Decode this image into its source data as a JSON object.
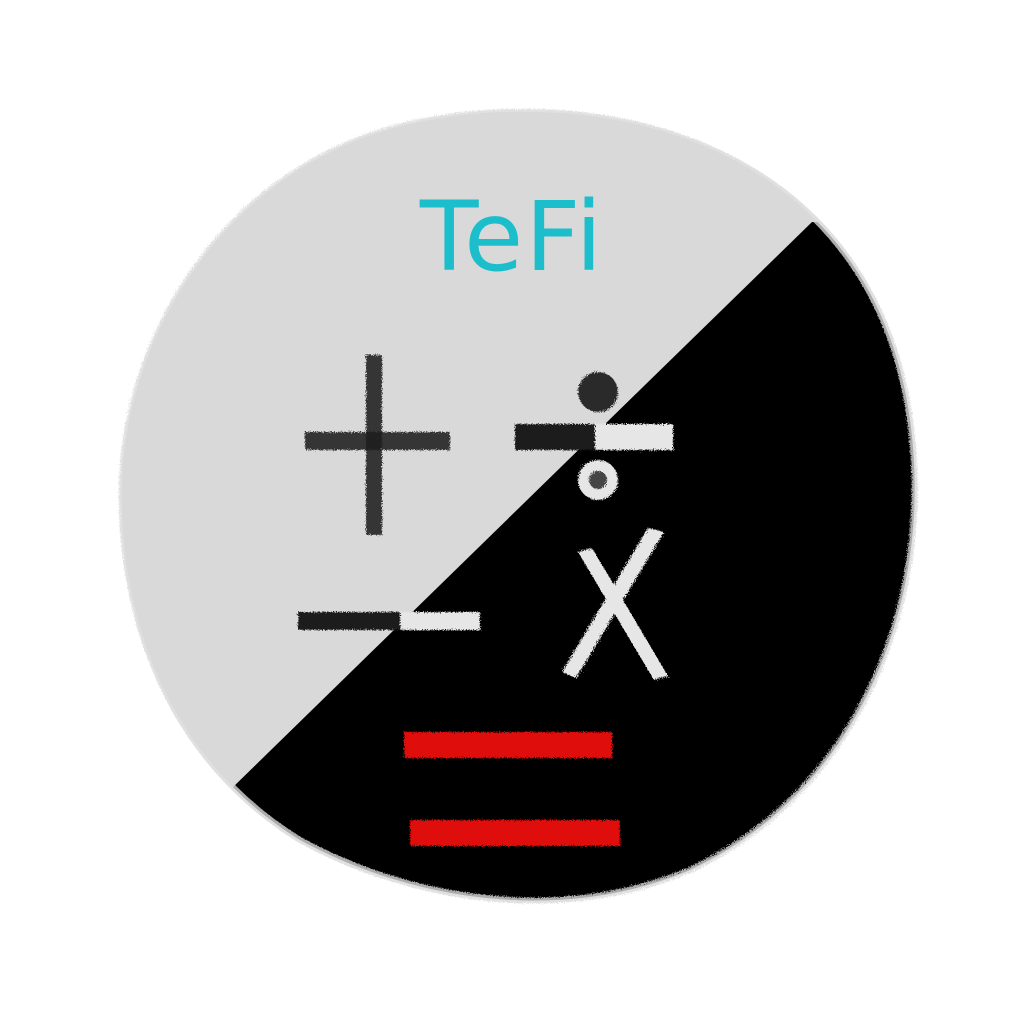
{
  "logo": {
    "title": "TeFi",
    "symbols": [
      "plus",
      "divide",
      "minus",
      "multiply",
      "equals"
    ],
    "colors": {
      "title": "#1dbecb",
      "light_half": "#d9d9d9",
      "dark_half": "#000000",
      "stroke_dark": "#1a1a1a",
      "stroke_light": "#e6e6e6",
      "equals": "#e01010",
      "background": "#ffffff"
    }
  }
}
